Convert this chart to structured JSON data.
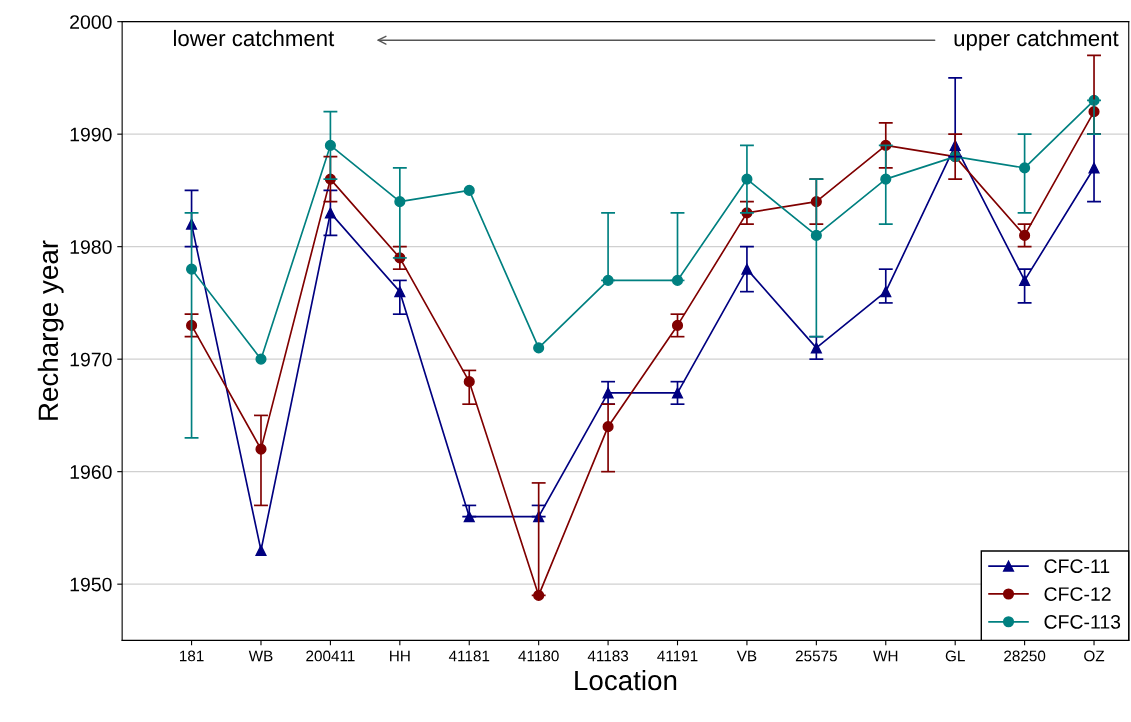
{
  "chart_data": {
    "type": "line",
    "xlabel": "Location",
    "ylabel": "Recharge year",
    "categories": [
      "181",
      "WB",
      "200411",
      "HH",
      "41181",
      "41180",
      "41183",
      "41191",
      "VB",
      "25575",
      "WH",
      "GL",
      "28250",
      "OZ"
    ],
    "series": [
      {
        "name": "CFC-11",
        "color": "#000080",
        "marker": "triangle",
        "values": [
          1982,
          1953,
          1983,
          1976,
          1956,
          1956,
          1967,
          1967,
          1978,
          1971,
          1976,
          1989,
          1977,
          1987
        ],
        "errors": [
          [
            1980,
            1985
          ],
          null,
          [
            1981,
            1985
          ],
          [
            1974,
            1977
          ],
          [
            1956,
            1957
          ],
          [
            1956,
            1957
          ],
          [
            1966,
            1968
          ],
          [
            1966,
            1968
          ],
          [
            1976,
            1980
          ],
          [
            1970,
            1972
          ],
          [
            1975,
            1978
          ],
          [
            1988,
            1995
          ],
          [
            1975,
            1978
          ],
          [
            1984,
            1990
          ]
        ]
      },
      {
        "name": "CFC-12",
        "color": "#800000",
        "marker": "circle",
        "values": [
          1973,
          1962,
          1986,
          1979,
          1968,
          1949,
          1964,
          1973,
          1983,
          1984,
          1989,
          1988,
          1981,
          1992
        ],
        "errors": [
          [
            1972,
            1974
          ],
          [
            1957,
            1965
          ],
          [
            1984,
            1988
          ],
          [
            1978,
            1980
          ],
          [
            1966,
            1969
          ],
          [
            1949,
            1959
          ],
          [
            1960,
            1966
          ],
          [
            1972,
            1974
          ],
          [
            1982,
            1984
          ],
          [
            1982,
            1986
          ],
          [
            1987,
            1991
          ],
          [
            1986,
            1990
          ],
          [
            1980,
            1982
          ],
          [
            1990,
            1997
          ]
        ]
      },
      {
        "name": "CFC-113",
        "color": "#008080",
        "marker": "circle",
        "values": [
          1978,
          1970,
          1989,
          1984,
          1985,
          1971,
          1977,
          1977,
          1986,
          1981,
          1986,
          1988,
          1987,
          1993
        ],
        "errors": [
          [
            1963,
            1983
          ],
          null,
          [
            1986,
            1992
          ],
          [
            1979,
            1987
          ],
          null,
          null,
          [
            1977,
            1983
          ],
          [
            1977,
            1983
          ],
          [
            1983,
            1989
          ],
          [
            1972,
            1986
          ],
          [
            1982,
            1989
          ],
          null,
          [
            1983,
            1990
          ],
          [
            1990,
            1993
          ]
        ]
      }
    ],
    "ylim": [
      1945,
      2000
    ],
    "yticks": [
      1950,
      1960,
      1970,
      1980,
      1990,
      2000
    ],
    "annotations": [
      "lower catchment",
      "upper catchment"
    ],
    "grid": "y",
    "legend": "bottom right",
    "line_style": "solid"
  }
}
